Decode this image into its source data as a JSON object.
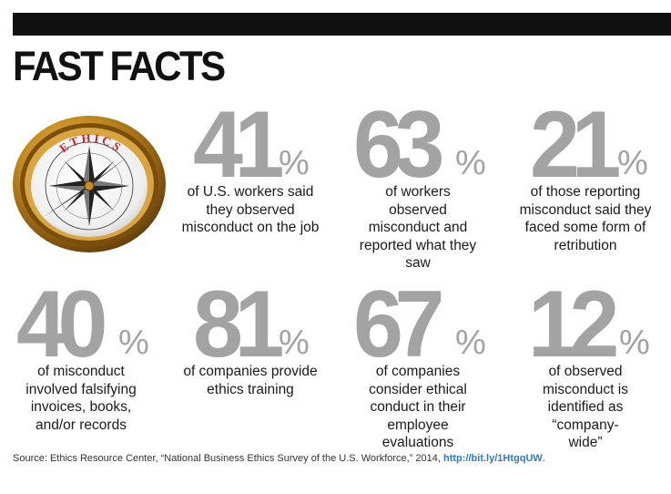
{
  "header": {
    "title": "FAST FACTS"
  },
  "compass": {
    "label": "ETHICS"
  },
  "stats": [
    {
      "number": "41",
      "percent": "%",
      "text": "of U.S. workers said they observed misconduct on the job"
    },
    {
      "number": "63",
      "percent": "%",
      "text": "of workers observed misconduct and reported what they saw"
    },
    {
      "number": "21",
      "percent": "%",
      "text": "of those reporting misconduct said they faced some form of retribution"
    },
    {
      "number": "40",
      "percent": "%",
      "text": "of misconduct involved falsifying invoices, books, and/or records"
    },
    {
      "number": "81",
      "percent": "%",
      "text": "of companies provide ethics training"
    },
    {
      "number": "67",
      "percent": "%",
      "text": "of companies consider ethical conduct in their employee evaluations"
    },
    {
      "number": "12",
      "percent": "%",
      "text": "of observed misconduct is identified as “company-wide”"
    }
  ],
  "footer": {
    "source_text": "Source: Ethics Resource Center, “National Business Ethics Survey of the U.S. Workforce,” 2014, ",
    "link_text": "http://bit.ly/1HtgqUW",
    "end_text": "."
  },
  "colors": {
    "number_gray": "#a3a3a3",
    "bar_black": "#111111",
    "link_blue": "#2f7cc0",
    "compass_gold": "#c8901f"
  }
}
